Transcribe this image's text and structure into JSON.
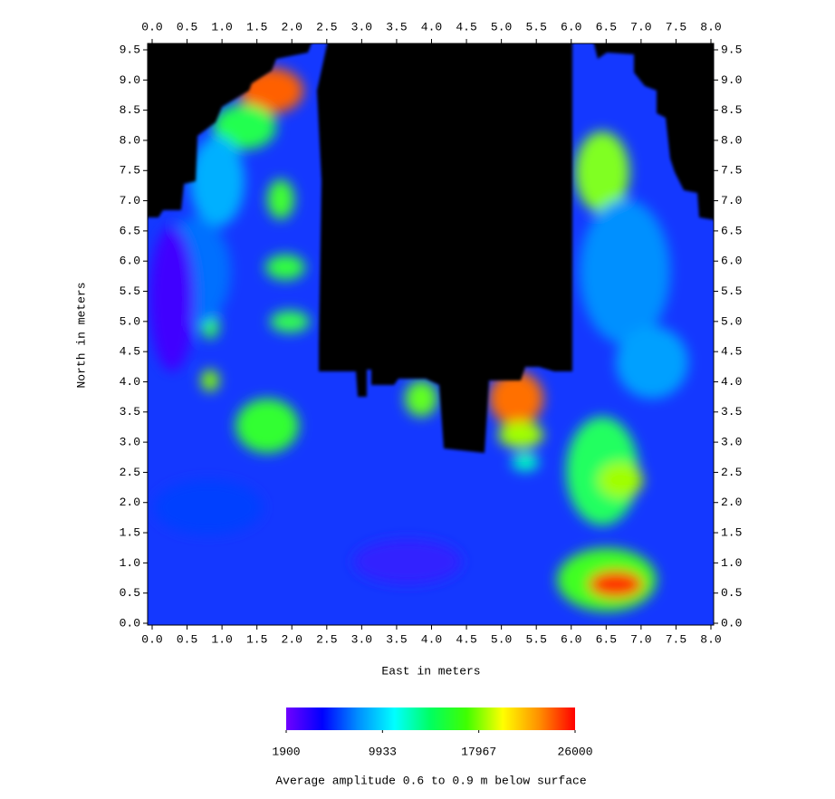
{
  "chart_data": {
    "type": "heatmap",
    "title": "Average amplitude 0.6 to 0.9 m below surface",
    "x_label": "East in meters",
    "y_label": "North in meters",
    "xlim": [
      0,
      8
    ],
    "ylim": [
      0,
      9.5
    ],
    "xticks": [
      {
        "value": 0,
        "label": "0.0"
      },
      {
        "value": 0.5,
        "label": "0.5"
      },
      {
        "value": 1,
        "label": "1.0"
      },
      {
        "value": 1.5,
        "label": "1.5"
      },
      {
        "value": 2,
        "label": "2.0"
      },
      {
        "value": 2.5,
        "label": "2.5"
      },
      {
        "value": 3,
        "label": "3.0"
      },
      {
        "value": 3.5,
        "label": "3.5"
      },
      {
        "value": 4,
        "label": "4.0"
      },
      {
        "value": 4.5,
        "label": "4.5"
      },
      {
        "value": 5,
        "label": "5.0"
      },
      {
        "value": 5.5,
        "label": "5.5"
      },
      {
        "value": 6,
        "label": "6.0"
      },
      {
        "value": 6.5,
        "label": "6.5"
      },
      {
        "value": 7,
        "label": "7.0"
      },
      {
        "value": 7.5,
        "label": "7.5"
      },
      {
        "value": 8,
        "label": "8.0"
      }
    ],
    "yticks": [
      {
        "value": 0,
        "label": "0.0"
      },
      {
        "value": 0.5,
        "label": "0.5"
      },
      {
        "value": 1,
        "label": "1.0"
      },
      {
        "value": 1.5,
        "label": "1.5"
      },
      {
        "value": 2,
        "label": "2.0"
      },
      {
        "value": 2.5,
        "label": "2.5"
      },
      {
        "value": 3,
        "label": "3.0"
      },
      {
        "value": 3.5,
        "label": "3.5"
      },
      {
        "value": 4,
        "label": "4.0"
      },
      {
        "value": 4.5,
        "label": "4.5"
      },
      {
        "value": 5,
        "label": "5.0"
      },
      {
        "value": 5.5,
        "label": "5.5"
      },
      {
        "value": 6,
        "label": "6.0"
      },
      {
        "value": 6.5,
        "label": "6.5"
      },
      {
        "value": 7,
        "label": "7.0"
      },
      {
        "value": 7.5,
        "label": "7.5"
      },
      {
        "value": 8,
        "label": "8.0"
      },
      {
        "value": 8.5,
        "label": "8.5"
      },
      {
        "value": 9,
        "label": "9.0"
      },
      {
        "value": 9.5,
        "label": "9.5"
      }
    ],
    "clim": [
      1900,
      26000
    ],
    "colorbar_ticks": [
      1900,
      9933,
      17967,
      26000
    ],
    "colormap": [
      "#7000ff",
      "#0000ff",
      "#0090ff",
      "#00ffff",
      "#00ff60",
      "#40ff00",
      "#ffff00",
      "#ff9000",
      "#ff0000"
    ]
  }
}
